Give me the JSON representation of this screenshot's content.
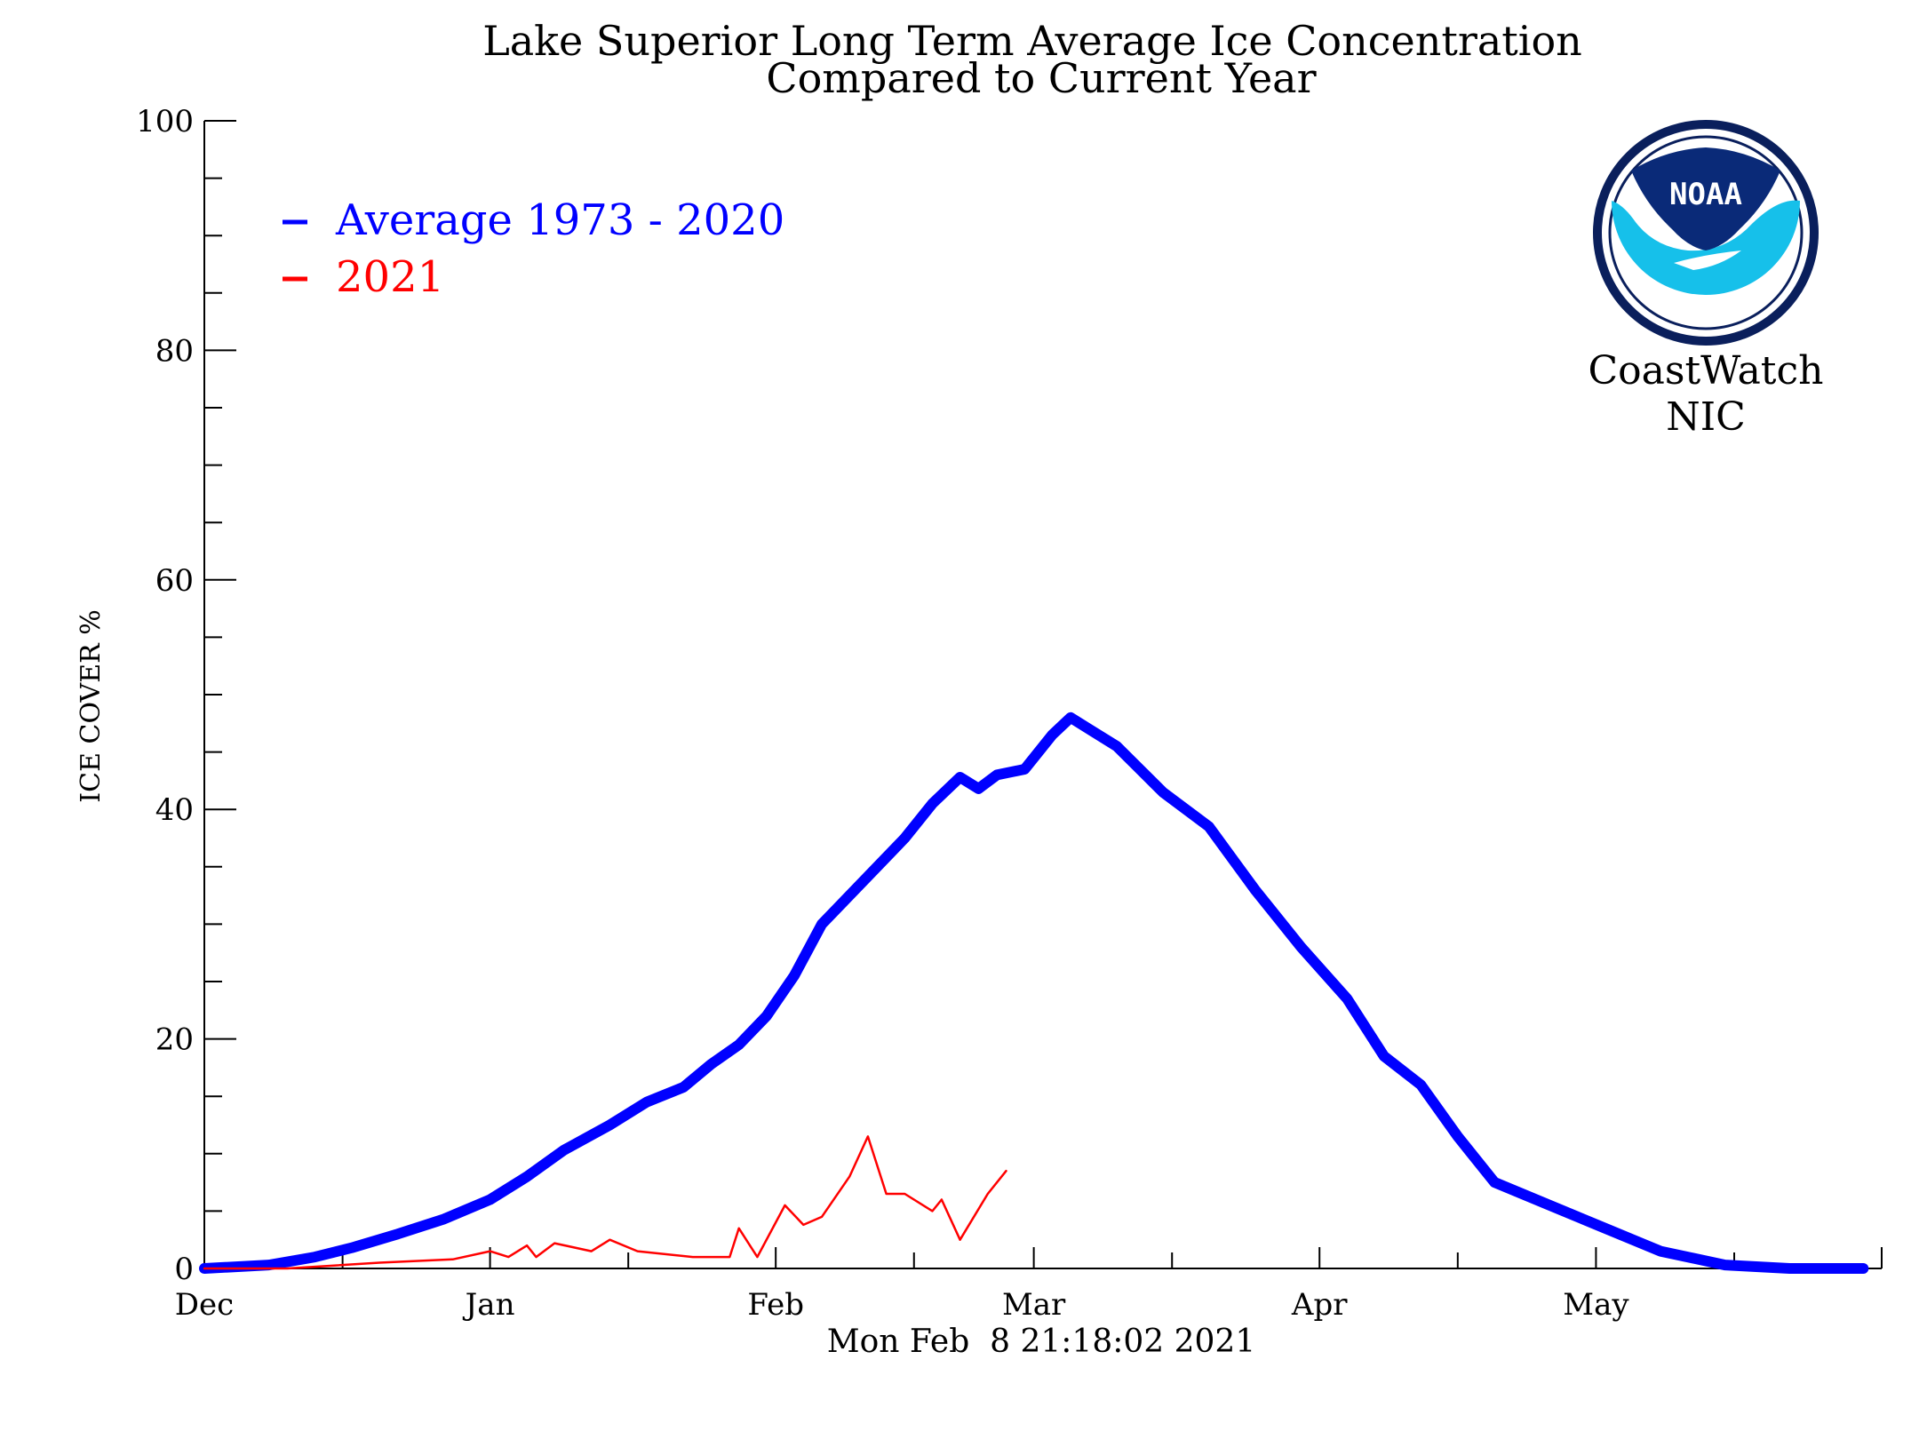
{
  "chart_data": {
    "type": "line",
    "title": "Lake Superior Long Term Average Ice Concentration",
    "subtitle": "Compared to Current Year",
    "xlabel": "",
    "ylabel": "ICE COVER %",
    "ylim": [
      0,
      100
    ],
    "xlim": [
      "2020-12-01",
      "2021-05-31"
    ],
    "x_ticks": [
      "Dec",
      "Jan",
      "Feb",
      "Mar",
      "Apr",
      "May"
    ],
    "y_ticks": [
      0,
      20,
      40,
      60,
      80,
      100
    ],
    "legend_position": "top-left",
    "grid": false,
    "timestamp": "Mon Feb  8 21:18:02 2021",
    "series": [
      {
        "name": "Average 1973 - 2020",
        "color": "#0000ff",
        "points": [
          [
            "2020-12-01",
            0.0
          ],
          [
            "2020-12-08",
            0.3
          ],
          [
            "2020-12-13",
            1.0
          ],
          [
            "2020-12-17",
            1.8
          ],
          [
            "2020-12-22",
            3.0
          ],
          [
            "2020-12-27",
            4.3
          ],
          [
            "2021-01-01",
            6.0
          ],
          [
            "2021-01-05",
            8.0
          ],
          [
            "2021-01-09",
            10.3
          ],
          [
            "2021-01-14",
            12.5
          ],
          [
            "2021-01-18",
            14.5
          ],
          [
            "2021-01-22",
            15.8
          ],
          [
            "2021-01-25",
            17.8
          ],
          [
            "2021-01-28",
            19.5
          ],
          [
            "2021-01-31",
            22.0
          ],
          [
            "2021-02-03",
            25.5
          ],
          [
            "2021-02-06",
            30.0
          ],
          [
            "2021-02-09",
            32.5
          ],
          [
            "2021-02-12",
            35.0
          ],
          [
            "2021-02-15",
            37.5
          ],
          [
            "2021-02-18",
            40.5
          ],
          [
            "2021-02-21",
            42.8
          ],
          [
            "2021-02-23",
            41.8
          ],
          [
            "2021-02-25",
            43.0
          ],
          [
            "2021-02-28",
            43.5
          ],
          [
            "2021-03-03",
            46.5
          ],
          [
            "2021-03-05",
            48.0
          ],
          [
            "2021-03-07",
            47.0
          ],
          [
            "2021-03-10",
            45.5
          ],
          [
            "2021-03-15",
            41.5
          ],
          [
            "2021-03-20",
            38.5
          ],
          [
            "2021-03-25",
            33.0
          ],
          [
            "2021-03-30",
            28.0
          ],
          [
            "2021-04-04",
            23.5
          ],
          [
            "2021-04-08",
            18.5
          ],
          [
            "2021-04-12",
            16.0
          ],
          [
            "2021-04-16",
            11.5
          ],
          [
            "2021-04-20",
            7.5
          ],
          [
            "2021-04-26",
            5.5
          ],
          [
            "2021-05-02",
            3.5
          ],
          [
            "2021-05-08",
            1.5
          ],
          [
            "2021-05-15",
            0.3
          ],
          [
            "2021-05-22",
            0.0
          ],
          [
            "2021-05-30",
            0.0
          ]
        ]
      },
      {
        "name": "2021",
        "color": "#ff0000",
        "points": [
          [
            "2020-12-01",
            0.0
          ],
          [
            "2020-12-10",
            0.0
          ],
          [
            "2020-12-20",
            0.5
          ],
          [
            "2020-12-28",
            0.8
          ],
          [
            "2021-01-01",
            1.5
          ],
          [
            "2021-01-03",
            1.0
          ],
          [
            "2021-01-05",
            2.0
          ],
          [
            "2021-01-06",
            1.0
          ],
          [
            "2021-01-08",
            2.2
          ],
          [
            "2021-01-12",
            1.5
          ],
          [
            "2021-01-14",
            2.5
          ],
          [
            "2021-01-17",
            1.5
          ],
          [
            "2021-01-23",
            1.0
          ],
          [
            "2021-01-27",
            1.0
          ],
          [
            "2021-01-28",
            3.5
          ],
          [
            "2021-01-30",
            1.0
          ],
          [
            "2021-02-02",
            5.5
          ],
          [
            "2021-02-04",
            3.8
          ],
          [
            "2021-02-06",
            4.5
          ],
          [
            "2021-02-09",
            8.0
          ],
          [
            "2021-02-11",
            11.5
          ],
          [
            "2021-02-13",
            6.5
          ],
          [
            "2021-02-15",
            6.5
          ],
          [
            "2021-02-18",
            5.0
          ],
          [
            "2021-02-19",
            6.0
          ],
          [
            "2021-02-21",
            2.5
          ],
          [
            "2021-02-24",
            6.5
          ],
          [
            "2021-02-26",
            8.5
          ]
        ]
      }
    ]
  },
  "branding": {
    "logo_word": "NOAA",
    "org_line1": "CoastWatch",
    "org_line2": "NIC"
  }
}
